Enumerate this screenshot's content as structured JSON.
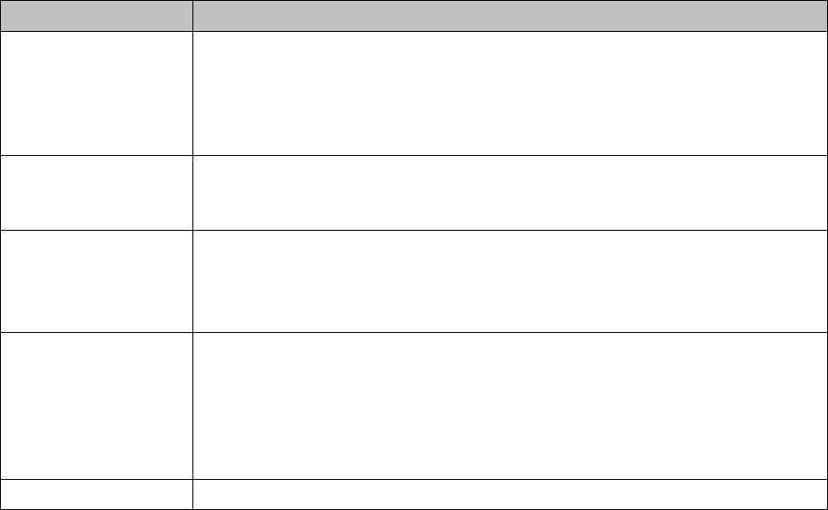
{
  "table": {
    "header_color": "#c0c0c0",
    "border_color": "#000000",
    "headers": [
      "",
      ""
    ],
    "rows": [
      [
        "",
        ""
      ],
      [
        "",
        ""
      ],
      [
        "",
        ""
      ],
      [
        "",
        ""
      ],
      [
        "",
        ""
      ]
    ]
  }
}
